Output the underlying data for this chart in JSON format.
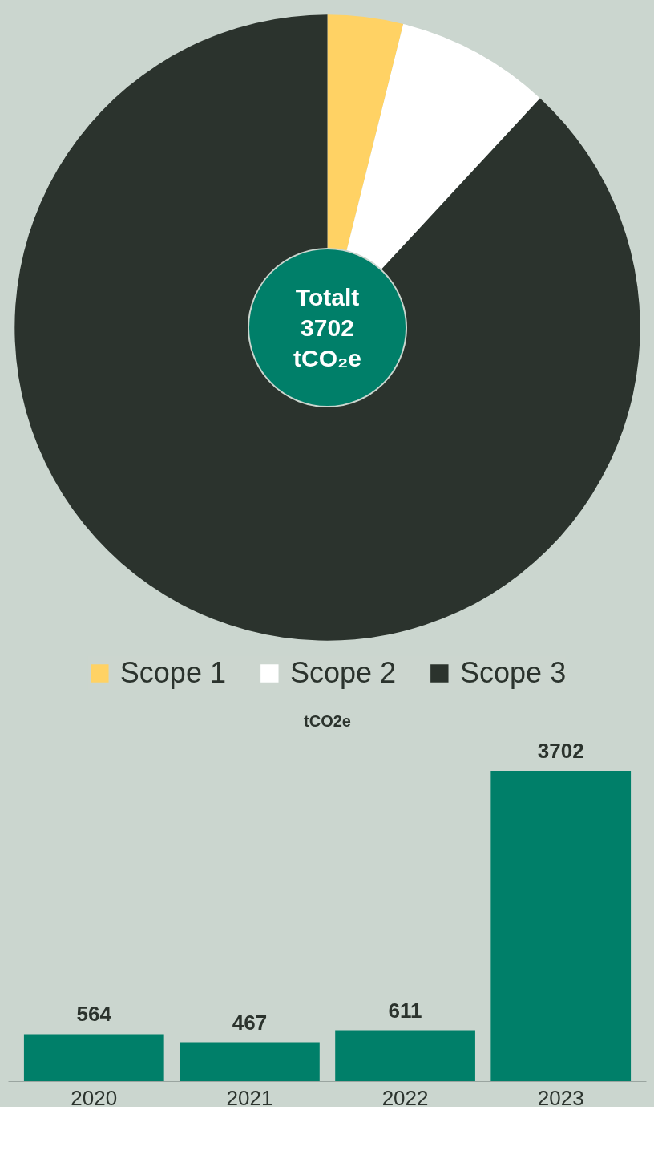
{
  "chart_data": [
    {
      "type": "donut",
      "categories": [
        "Scope 1",
        "Scope 2",
        "Scope 3"
      ],
      "values": [
        3.9,
        8,
        88.1
      ],
      "colors": [
        "#ffd264",
        "#ffffff",
        "#2b332d"
      ],
      "legend": "bottom",
      "annotations": [
        "Totalt 3702 tCO₂e"
      ]
    },
    {
      "type": "bar",
      "title": "tCO2e",
      "categories": [
        "2020",
        "2021",
        "2022",
        "2023"
      ],
      "values": [
        564,
        467,
        611,
        3702
      ],
      "color": "#007f69",
      "data_labels": true
    }
  ]
}
